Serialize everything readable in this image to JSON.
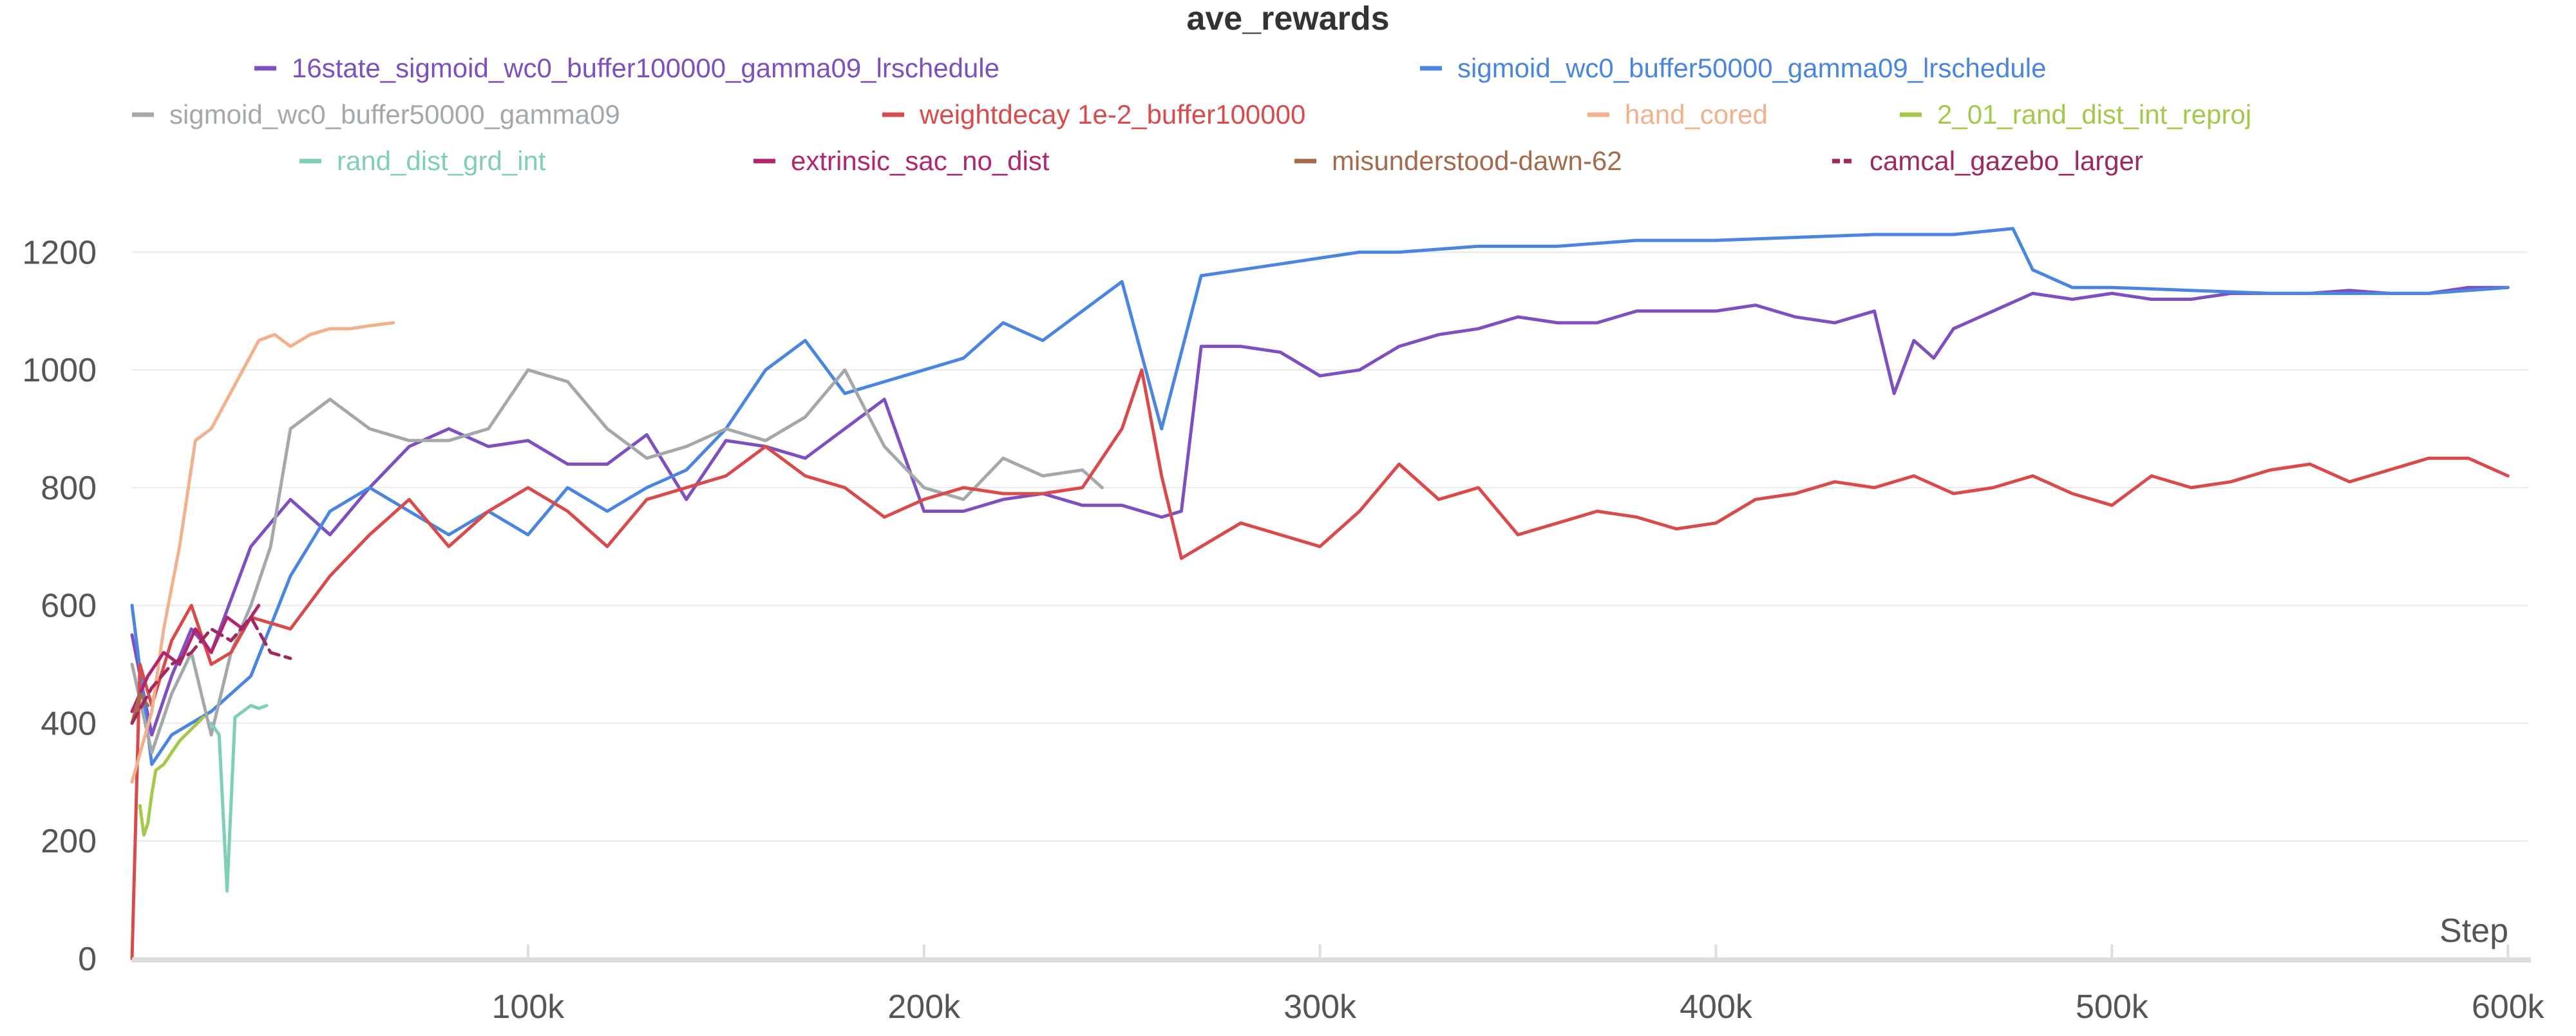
{
  "chart_data": {
    "type": "line",
    "title": "ave_rewards",
    "xlabel": "Step",
    "ylabel": "",
    "xlim": [
      0,
      605000
    ],
    "ylim": [
      0,
      1300
    ],
    "x_ticks": [
      100000,
      200000,
      300000,
      400000,
      500000,
      600000
    ],
    "x_tick_labels": [
      "100k",
      "200k",
      "300k",
      "400k",
      "500k",
      "600k"
    ],
    "y_ticks": [
      0,
      200,
      400,
      600,
      800,
      1000,
      1200
    ],
    "y_tick_labels": [
      "0",
      "200",
      "400",
      "600",
      "800",
      "1000",
      "1200"
    ],
    "grid": true,
    "legend_position": "top",
    "series": [
      {
        "name": "16state_sigmoid_wc0_buffer100000_gamma09_lrschedule",
        "color": "#7e4fbf",
        "dash": false,
        "x": [
          0,
          5000,
          10000,
          15000,
          20000,
          30000,
          40000,
          50000,
          60000,
          70000,
          80000,
          90000,
          100000,
          110000,
          120000,
          130000,
          140000,
          150000,
          160000,
          170000,
          180000,
          190000,
          200000,
          210000,
          220000,
          230000,
          240000,
          250000,
          260000,
          265000,
          270000,
          280000,
          290000,
          300000,
          310000,
          320000,
          330000,
          340000,
          350000,
          360000,
          370000,
          380000,
          390000,
          400000,
          410000,
          420000,
          430000,
          440000,
          445000,
          450000,
          455000,
          460000,
          470000,
          480000,
          490000,
          500000,
          510000,
          520000,
          530000,
          540000,
          550000,
          560000,
          570000,
          580000,
          590000,
          600000
        ],
        "values": [
          550,
          380,
          480,
          560,
          520,
          700,
          780,
          720,
          800,
          870,
          900,
          870,
          880,
          840,
          840,
          890,
          780,
          880,
          870,
          850,
          900,
          950,
          760,
          760,
          780,
          790,
          770,
          770,
          750,
          760,
          1040,
          1040,
          1030,
          990,
          1000,
          1040,
          1060,
          1070,
          1090,
          1080,
          1080,
          1100,
          1100,
          1100,
          1110,
          1090,
          1080,
          1100,
          960,
          1050,
          1020,
          1070,
          1100,
          1130,
          1120,
          1130,
          1120,
          1120,
          1130,
          1130,
          1130,
          1135,
          1130,
          1130,
          1140,
          1140
        ]
      },
      {
        "name": "sigmoid_wc0_buffer50000_gamma09_lrschedule",
        "color": "#4a86e0",
        "dash": false,
        "x": [
          0,
          5000,
          10000,
          20000,
          30000,
          40000,
          50000,
          60000,
          70000,
          80000,
          90000,
          100000,
          110000,
          120000,
          130000,
          140000,
          150000,
          160000,
          170000,
          180000,
          190000,
          200000,
          210000,
          220000,
          230000,
          240000,
          250000,
          260000,
          270000,
          280000,
          290000,
          300000,
          310000,
          320000,
          340000,
          360000,
          380000,
          400000,
          420000,
          440000,
          460000,
          475000,
          480000,
          490000,
          500000,
          520000,
          540000,
          560000,
          580000,
          600000
        ],
        "values": [
          600,
          330,
          380,
          420,
          480,
          650,
          760,
          800,
          760,
          720,
          760,
          720,
          800,
          760,
          800,
          830,
          900,
          1000,
          1050,
          960,
          980,
          1000,
          1020,
          1080,
          1050,
          1100,
          1150,
          900,
          1160,
          1170,
          1180,
          1190,
          1200,
          1200,
          1210,
          1210,
          1220,
          1220,
          1225,
          1230,
          1230,
          1240,
          1170,
          1140,
          1140,
          1135,
          1130,
          1130,
          1130,
          1140
        ]
      },
      {
        "name": "sigmoid_wc0_buffer50000_gamma09",
        "color": "#a2a8ab",
        "dash": false,
        "x": [
          0,
          5000,
          10000,
          15000,
          20000,
          25000,
          30000,
          35000,
          40000,
          50000,
          60000,
          70000,
          80000,
          90000,
          100000,
          110000,
          120000,
          130000,
          140000,
          150000,
          160000,
          170000,
          180000,
          190000,
          200000,
          210000,
          220000,
          230000,
          240000,
          245000
        ],
        "values": [
          500,
          350,
          450,
          520,
          380,
          520,
          600,
          700,
          900,
          950,
          900,
          880,
          880,
          900,
          1000,
          980,
          900,
          850,
          870,
          900,
          880,
          920,
          1000,
          870,
          800,
          780,
          850,
          820,
          830,
          800
        ]
      },
      {
        "name": "weightdecay 1e-2_buffer100000",
        "color": "#d94b4b",
        "dash": false,
        "x": [
          0,
          2000,
          5000,
          10000,
          15000,
          20000,
          25000,
          30000,
          40000,
          50000,
          60000,
          70000,
          80000,
          90000,
          100000,
          110000,
          120000,
          130000,
          140000,
          150000,
          160000,
          170000,
          180000,
          190000,
          200000,
          210000,
          220000,
          230000,
          240000,
          250000,
          255000,
          260000,
          265000,
          270000,
          280000,
          290000,
          300000,
          310000,
          320000,
          330000,
          340000,
          350000,
          360000,
          370000,
          380000,
          390000,
          400000,
          410000,
          420000,
          430000,
          440000,
          450000,
          460000,
          470000,
          480000,
          490000,
          500000,
          510000,
          520000,
          530000,
          540000,
          550000,
          560000,
          570000,
          580000,
          590000,
          600000
        ],
        "values": [
          0,
          500,
          430,
          540,
          600,
          500,
          520,
          580,
          560,
          650,
          720,
          780,
          700,
          760,
          800,
          760,
          700,
          780,
          800,
          820,
          870,
          820,
          800,
          750,
          780,
          800,
          790,
          790,
          800,
          900,
          1000,
          820,
          680,
          700,
          740,
          720,
          700,
          760,
          840,
          780,
          800,
          720,
          740,
          760,
          750,
          730,
          740,
          780,
          790,
          810,
          800,
          820,
          790,
          800,
          820,
          790,
          770,
          820,
          800,
          810,
          830,
          840,
          810,
          830,
          850,
          850,
          820
        ]
      },
      {
        "name": "hand_cored",
        "color": "#f2b08c",
        "dash": false,
        "x": [
          0,
          5000,
          8000,
          12000,
          16000,
          20000,
          24000,
          28000,
          32000,
          36000,
          40000,
          45000,
          50000,
          55000,
          60000,
          66000
        ],
        "values": [
          300,
          420,
          560,
          700,
          880,
          900,
          950,
          1000,
          1050,
          1060,
          1040,
          1060,
          1070,
          1070,
          1075,
          1080
        ]
      },
      {
        "name": "2_01_rand_dist_int_reproj",
        "color": "#a6c84a",
        "dash": false,
        "x": [
          2000,
          3000,
          4000,
          5000,
          6000,
          8000,
          10000,
          12000,
          15000,
          18000
        ],
        "values": [
          260,
          210,
          230,
          280,
          320,
          330,
          350,
          370,
          390,
          410
        ]
      },
      {
        "name": "rand_dist_grd_int",
        "color": "#7fcfb8",
        "dash": false,
        "x": [
          20000,
          22000,
          24000,
          26000,
          28000,
          30000,
          32000,
          34000
        ],
        "values": [
          400,
          380,
          115,
          410,
          420,
          430,
          425,
          430
        ]
      },
      {
        "name": "extrinsic_sac_no_dist",
        "color": "#b22670",
        "dash": false,
        "x": [
          0,
          4000,
          8000,
          12000,
          16000,
          20000,
          24000,
          28000,
          32000
        ],
        "values": [
          420,
          480,
          520,
          500,
          560,
          520,
          580,
          560,
          600
        ]
      },
      {
        "name": "misunderstood-dawn-62",
        "color": "#a66a4b",
        "dash": false,
        "x": [
          0,
          2000,
          4000
        ],
        "values": [
          400,
          450,
          430
        ]
      },
      {
        "name": "camcal_gazebo_larger",
        "color": "#a0285e",
        "dash": true,
        "x": [
          0,
          5000,
          10000,
          15000,
          20000,
          25000,
          30000,
          35000,
          40000
        ],
        "values": [
          400,
          460,
          500,
          520,
          560,
          540,
          580,
          520,
          510
        ]
      }
    ]
  }
}
